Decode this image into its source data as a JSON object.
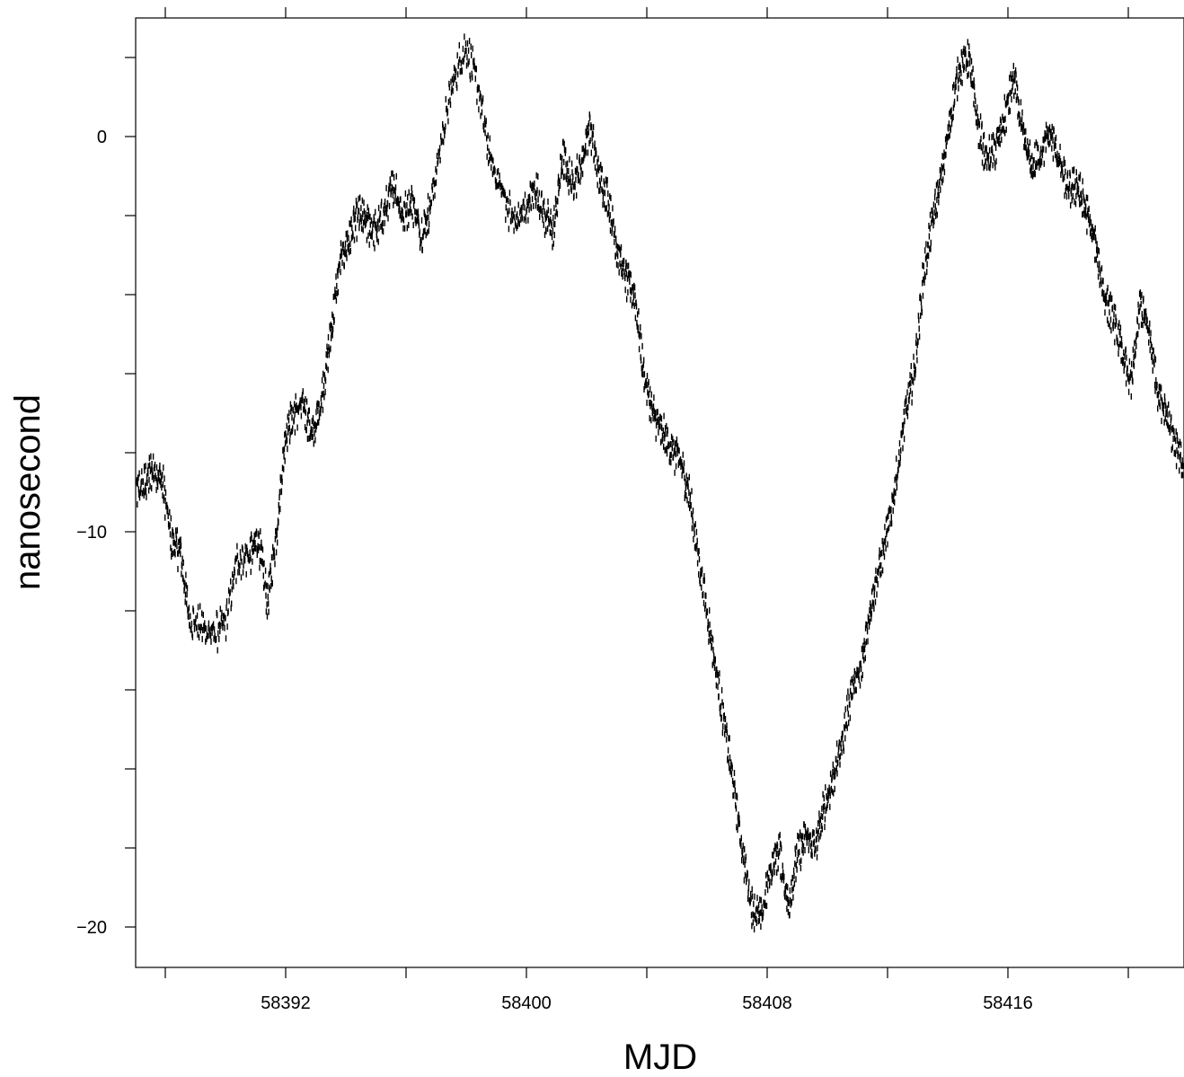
{
  "chart_data": {
    "type": "scatter",
    "title": "",
    "xlabel": "MJD",
    "ylabel": "nanosecond",
    "xlim": [
      58387.0,
      58422.0
    ],
    "ylim": [
      -21.0,
      3.0
    ],
    "x_major_ticks": [
      58392,
      58400,
      58408,
      58416
    ],
    "x_minor_ticks": [
      58388,
      58396,
      58404,
      58412,
      58420
    ],
    "y_major_ticks": [
      0,
      -10,
      -20
    ],
    "y_minor_ticks": [
      2,
      -2,
      -4,
      -6,
      -8,
      -12,
      -14,
      -16,
      -18
    ],
    "tick_labels": {
      "x": [
        "58392",
        "58400",
        "58408",
        "58416"
      ],
      "y": [
        "0",
        "−10",
        "−20"
      ]
    },
    "grid": false,
    "legend": "none",
    "marker_color": "#000000",
    "series": [
      {
        "x": [
          58387.0,
          58387.3,
          58387.6,
          58387.9,
          58388.2,
          58388.5,
          58388.8,
          58389.2,
          58389.6,
          58390.0,
          58390.4,
          58390.8,
          58391.1,
          58391.4,
          58391.7,
          58392.0,
          58392.3,
          58392.6,
          58392.9,
          58393.2,
          58393.5,
          58393.8,
          58394.1,
          58394.4,
          58394.7,
          58395.0,
          58395.3,
          58395.6,
          58395.9,
          58396.2,
          58396.5,
          58396.8,
          58397.2,
          58397.6,
          58398.0,
          58398.4,
          58398.8,
          58399.2,
          58399.6,
          58400.0,
          58400.3,
          58400.6,
          58400.9,
          58401.2,
          58401.5,
          58401.8,
          58402.1,
          58402.4,
          58402.7,
          58403.0,
          58403.3,
          58403.6,
          58403.9,
          58404.2,
          58404.5,
          58404.8,
          58405.1,
          58405.4,
          58405.7,
          58406.0,
          58406.3,
          58406.6,
          58406.9,
          58407.2,
          58407.5,
          58407.8,
          58408.1,
          58408.4,
          58408.7,
          58409.0,
          58409.3,
          58409.6,
          58409.9,
          58410.2,
          58410.5,
          58410.8,
          58411.1,
          58411.4,
          58411.7,
          58412.0,
          58412.3,
          58412.6,
          58412.9,
          58413.2,
          58413.5,
          58413.8,
          58414.1,
          58414.4,
          58414.7,
          58415.0,
          58415.3,
          58415.6,
          58415.9,
          58416.2,
          58416.5,
          58416.8,
          58417.1,
          58417.4,
          58417.7,
          58418.0,
          58418.3,
          58418.6,
          58418.9,
          58419.2,
          58419.5,
          58419.8,
          58420.1,
          58420.4,
          58420.7,
          58421.0,
          58421.3,
          58421.6,
          58421.9
        ],
        "y": [
          -9.0,
          -8.8,
          -8.4,
          -8.7,
          -10.2,
          -10.5,
          -12.2,
          -12.4,
          -12.6,
          -12.3,
          -10.7,
          -10.6,
          -10.2,
          -11.8,
          -10.0,
          -7.5,
          -7.0,
          -6.8,
          -7.6,
          -6.6,
          -5.0,
          -3.2,
          -2.6,
          -2.0,
          -2.2,
          -2.4,
          -1.9,
          -1.2,
          -2.0,
          -1.6,
          -2.5,
          -1.8,
          0.0,
          1.5,
          2.3,
          1.2,
          -0.6,
          -1.4,
          -2.2,
          -1.8,
          -1.3,
          -2.0,
          -2.4,
          -0.5,
          -1.2,
          -0.8,
          0.3,
          -1.0,
          -1.5,
          -2.8,
          -3.6,
          -4.0,
          -6.0,
          -7.0,
          -7.5,
          -7.9,
          -8.2,
          -9.0,
          -10.6,
          -12.0,
          -13.5,
          -15.0,
          -16.5,
          -18.2,
          -19.5,
          -19.8,
          -18.6,
          -18.0,
          -19.5,
          -18.2,
          -17.7,
          -18.0,
          -17.0,
          -16.2,
          -15.3,
          -14.0,
          -13.6,
          -12.0,
          -11.0,
          -10.0,
          -8.6,
          -7.0,
          -5.9,
          -3.5,
          -2.1,
          -1.0,
          0.5,
          1.8,
          2.0,
          0.3,
          -0.6,
          -0.3,
          0.5,
          1.5,
          0.0,
          -0.8,
          -0.4,
          0.1,
          -0.6,
          -1.4,
          -1.2,
          -1.9,
          -2.7,
          -4.0,
          -4.6,
          -5.5,
          -6.3,
          -4.2,
          -5.0,
          -6.5,
          -7.0,
          -7.9,
          -8.6
        ]
      }
    ]
  }
}
